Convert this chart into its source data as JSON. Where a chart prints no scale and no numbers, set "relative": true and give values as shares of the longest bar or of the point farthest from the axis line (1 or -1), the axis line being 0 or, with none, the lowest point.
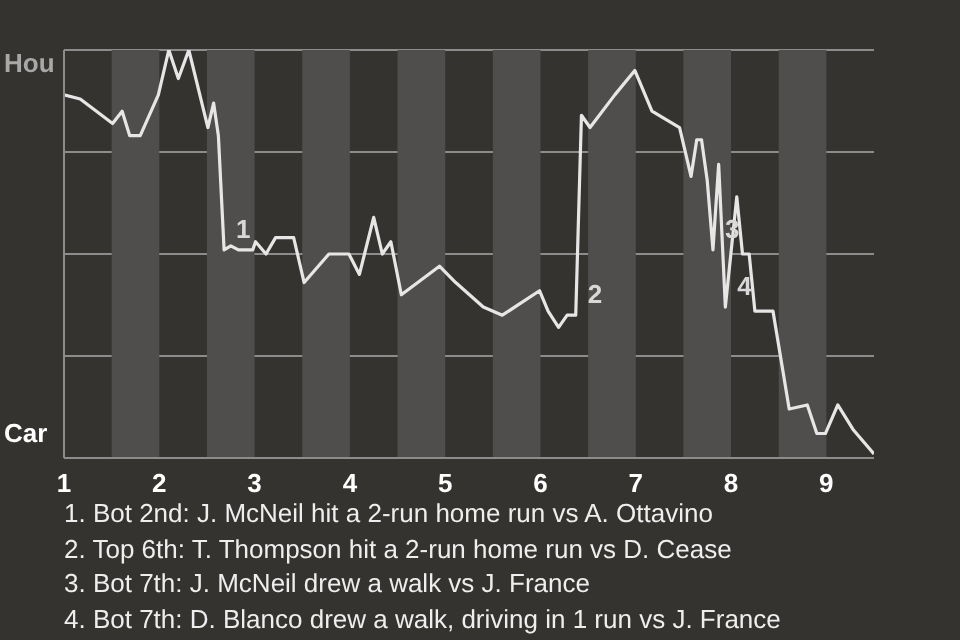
{
  "chart_data": {
    "type": "line",
    "relative": true,
    "x": [
      1.0,
      1.17,
      1.51,
      1.61,
      1.69,
      1.8,
      1.99,
      2.1,
      2.2,
      2.31,
      2.51,
      2.57,
      2.62,
      2.68,
      2.75,
      2.83,
      2.98,
      3.01,
      3.12,
      3.22,
      3.41,
      3.52,
      3.78,
      3.99,
      4.1,
      4.25,
      4.34,
      4.43,
      4.54,
      4.94,
      5.11,
      5.4,
      5.6,
      5.99,
      6.08,
      6.19,
      6.28,
      6.37,
      6.43,
      6.52,
      6.78,
      6.99,
      7.17,
      7.46,
      7.58,
      7.64,
      7.69,
      7.75,
      7.81,
      7.87,
      7.94,
      8.06,
      8.12,
      8.19,
      8.25,
      8.44,
      8.61,
      8.8,
      8.9,
      8.99,
      9.12,
      9.28,
      9.5
    ],
    "series": [
      {
        "color": "#e6e6e6",
        "values": [
          0.89,
          0.88,
          0.82,
          0.85,
          0.79,
          0.79,
          0.89,
          1,
          0.93,
          1.0,
          0.81,
          0.87,
          0.79,
          0.51,
          0.52,
          0.51,
          0.51,
          0.53,
          0.5,
          0.54,
          0.54,
          0.43,
          0.5,
          0.5,
          0.45,
          0.59,
          0.5,
          0.53,
          0.4,
          0.47,
          0.43,
          0.37,
          0.35,
          0.41,
          0.36,
          0.32,
          0.35,
          0.35,
          0.84,
          0.81,
          0.89,
          0.95,
          0.85,
          0.81,
          0.69,
          0.78,
          0.78,
          0.68,
          0.51,
          0.72,
          0.37,
          0.64,
          0.5,
          0.5,
          0.36,
          0.36,
          0.12,
          0.13,
          0.06,
          0.06,
          0.13,
          0.07,
          0.01
        ]
      }
    ],
    "xlim": [
      1,
      9.5
    ],
    "xticks": [
      1,
      2,
      3,
      4,
      5,
      6,
      7,
      8,
      9
    ],
    "grid": "y",
    "bands": [
      {
        "axis": "x",
        "from": 1.5,
        "to": 2,
        "color": "#4f4e4c"
      },
      {
        "axis": "x",
        "from": 2.5,
        "to": 3,
        "color": "#4f4e4c"
      },
      {
        "axis": "x",
        "from": 3.5,
        "to": 4,
        "color": "#4f4e4c"
      },
      {
        "axis": "x",
        "from": 4.5,
        "to": 5,
        "color": "#4f4e4c"
      },
      {
        "axis": "x",
        "from": 5.5,
        "to": 6,
        "color": "#4f4e4c"
      },
      {
        "axis": "x",
        "from": 6.5,
        "to": 7,
        "color": "#4f4e4c"
      },
      {
        "axis": "x",
        "from": 7.5,
        "to": 8,
        "color": "#4f4e4c"
      },
      {
        "axis": "x",
        "from": 8.5,
        "to": 9,
        "color": "#4f4e4c"
      }
    ],
    "annotations": [
      "Hou",
      "Car",
      {
        "text": "1",
        "x": 2.68,
        "y": 0.51
      },
      {
        "text": "2",
        "x": 6.37,
        "y": 0.35
      },
      {
        "text": "3",
        "x": 7.81,
        "y": 0.51
      },
      {
        "text": "4",
        "x": 7.94,
        "y": 0.37
      },
      "1. Bot 2nd: J. McNeil hit a 2-run home run vs A. Ottavino",
      "2. Top 6th: T. Thompson hit a 2-run home run vs D. Cease",
      "3. Bot 7th: J. McNeil drew a walk vs J. France",
      "4. Bot 7th: D. Blanco drew a walk, driving in 1 run vs J. France"
    ]
  }
}
